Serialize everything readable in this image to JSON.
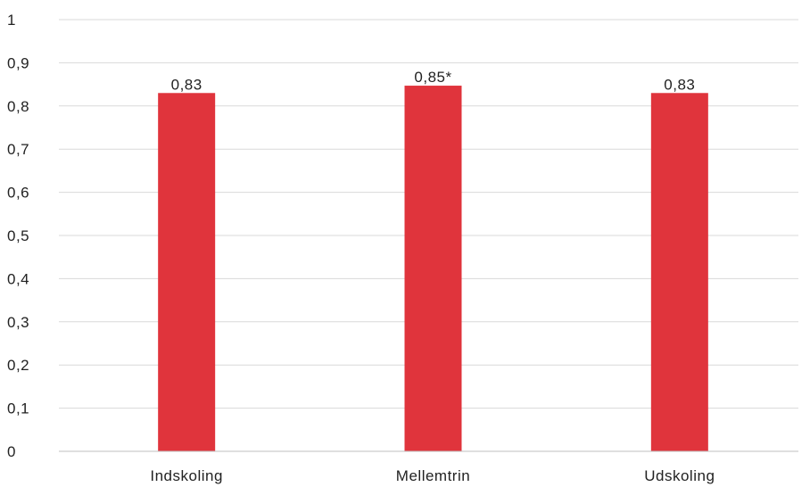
{
  "chart_data": {
    "type": "bar",
    "categories": [
      "Indskoling",
      "Mellemtrin",
      "Udskoling"
    ],
    "values": [
      0.83,
      0.847,
      0.83
    ],
    "data_labels": [
      "0,83",
      "0,85*",
      "0,83"
    ],
    "ylim": [
      0,
      1
    ],
    "y_ticks": [
      0,
      0.1,
      0.2,
      0.3,
      0.4,
      0.5,
      0.6,
      0.7,
      0.8,
      0.9,
      1
    ],
    "y_tick_labels": [
      "0",
      "0,1",
      "0,2",
      "0,3",
      "0,4",
      "0,5",
      "0,6",
      "0,7",
      "0,8",
      "0,9",
      "1"
    ],
    "grid": true,
    "bar_color": "#e0343c",
    "title": "",
    "xlabel": "",
    "ylabel": ""
  }
}
